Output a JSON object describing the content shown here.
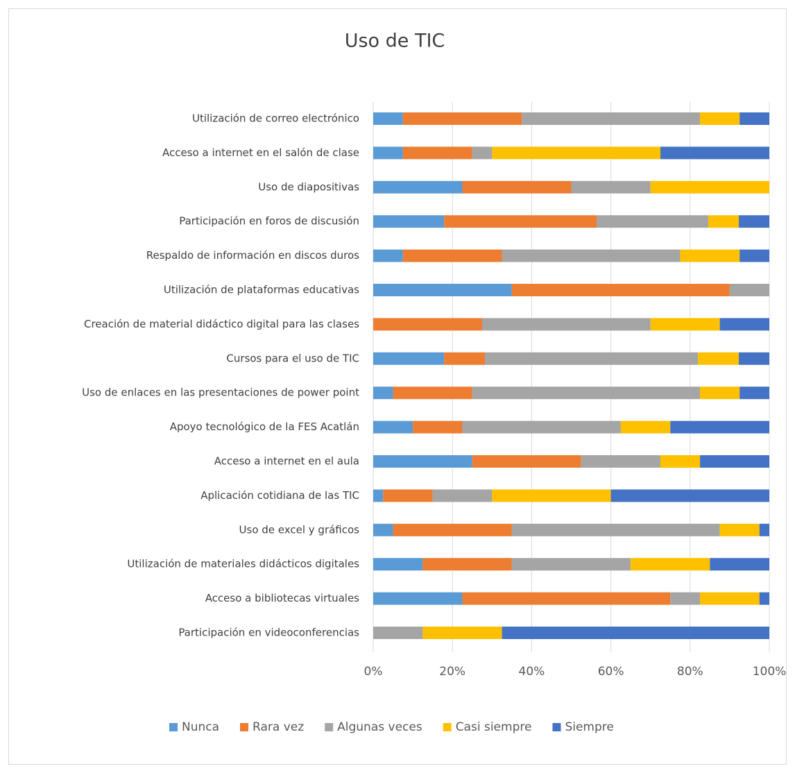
{
  "chart_data": {
    "type": "stacked-barh",
    "title": "Uso de TIC",
    "categories": [
      "Utilización de correo electrónico",
      "Acceso  a internet en el salón de clase",
      "Uso de diapositivas ",
      "Participación en foros de discusión ",
      "Respaldo de información en discos duros",
      "Utilización de plataformas educativas",
      "Creación de material didáctico digital para las clases",
      "Cursos para el uso de TIC ",
      "Uso de enlaces en las presentaciones de power point",
      "Apoyo tecnológico de la FES Acatlán ",
      "Acceso a internet en el aula",
      "Aplicación cotidiana de las TIC",
      "Uso de excel y gráficos",
      "Utilización de materiales didácticos digitales",
      "Acceso a bibliotecas virtuales ",
      "Participación en videoconferencias"
    ],
    "series": [
      {
        "name": "Nunca",
        "color": "#5b9bd5",
        "values": [
          7.5,
          7.5,
          22.5,
          17.9,
          7.5,
          35,
          0,
          17.9,
          5,
          10,
          25,
          2.5,
          5,
          12.5,
          22.5,
          0
        ]
      },
      {
        "name": "Rara vez",
        "color": "#ed7d31",
        "values": [
          30,
          17.5,
          27.5,
          38.5,
          25,
          55,
          27.5,
          10.3,
          20,
          12.5,
          27.5,
          12.5,
          30,
          22.5,
          52.5,
          0
        ]
      },
      {
        "name": "Algunas veces",
        "color": "#a5a5a5",
        "values": [
          45,
          5,
          20,
          28.2,
          45,
          10,
          42.5,
          53.8,
          57.5,
          40,
          20,
          15,
          52.5,
          30,
          7.5,
          12.5
        ]
      },
      {
        "name": "Casi siempre",
        "color": "#ffc000",
        "values": [
          10,
          42.5,
          30,
          7.7,
          15,
          0,
          17.5,
          10.3,
          10,
          12.5,
          10,
          30,
          10,
          20,
          15,
          20
        ]
      },
      {
        "name": "Siempre",
        "color": "#4472c4",
        "values": [
          7.5,
          27.5,
          0,
          7.7,
          7.5,
          0,
          12.5,
          7.7,
          7.5,
          25,
          17.5,
          40,
          2.5,
          15,
          2.5,
          67.5
        ]
      }
    ],
    "xlim": [
      0,
      100
    ],
    "xticks": [
      {
        "value": 0,
        "label": "0%"
      },
      {
        "value": 20,
        "label": "20%"
      },
      {
        "value": 40,
        "label": "40%"
      },
      {
        "value": 60,
        "label": "60%"
      },
      {
        "value": 80,
        "label": "80%"
      },
      {
        "value": 100,
        "label": "100%"
      }
    ],
    "grid": true,
    "legend": "bottom"
  }
}
